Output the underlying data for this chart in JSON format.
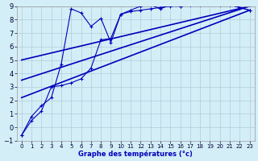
{
  "xlabel": "Graphe des températures (°c)",
  "bg_color": "#d4eef7",
  "grid_color": "#b0ccd8",
  "line_color": "#0000bb",
  "xlim": [
    -0.5,
    23.5
  ],
  "ylim": [
    -1,
    9
  ],
  "xticks": [
    0,
    1,
    2,
    3,
    4,
    5,
    6,
    7,
    8,
    9,
    10,
    11,
    12,
    13,
    14,
    15,
    16,
    17,
    18,
    19,
    20,
    21,
    22,
    23
  ],
  "yticks": [
    -1,
    0,
    1,
    2,
    3,
    4,
    5,
    6,
    7,
    8,
    9
  ],
  "curve1_x": [
    0,
    1,
    2,
    3,
    4,
    5,
    6,
    7,
    8,
    9,
    10,
    11,
    12,
    13,
    14,
    15,
    16,
    17,
    18,
    19,
    20,
    21,
    22,
    23
  ],
  "curve1_y": [
    -0.6,
    0.8,
    1.6,
    2.2,
    4.7,
    8.8,
    8.5,
    7.5,
    8.1,
    6.3,
    8.4,
    8.7,
    9.0,
    9.1,
    8.8,
    9.1,
    9.0,
    9.1,
    9.2,
    9.2,
    9.1,
    9.1,
    8.9,
    8.7
  ],
  "curve2_x": [
    0,
    1,
    2,
    3,
    4,
    5,
    6,
    7,
    8,
    9,
    10,
    11,
    12,
    13,
    14,
    15,
    16,
    17,
    18,
    19,
    20,
    21,
    22,
    23
  ],
  "curve2_y": [
    -0.6,
    0.5,
    1.2,
    3.0,
    3.1,
    3.3,
    3.6,
    4.4,
    6.5,
    6.6,
    8.4,
    8.6,
    8.7,
    8.8,
    8.9,
    9.0,
    9.0,
    9.1,
    9.1,
    9.2,
    9.2,
    9.1,
    8.9,
    8.7
  ],
  "line1_x": [
    0,
    23
  ],
  "line1_y": [
    5.0,
    9.0
  ],
  "line2_x": [
    0,
    23
  ],
  "line2_y": [
    3.5,
    9.0
  ],
  "line3_x": [
    0,
    23
  ],
  "line3_y": [
    2.2,
    8.7
  ]
}
